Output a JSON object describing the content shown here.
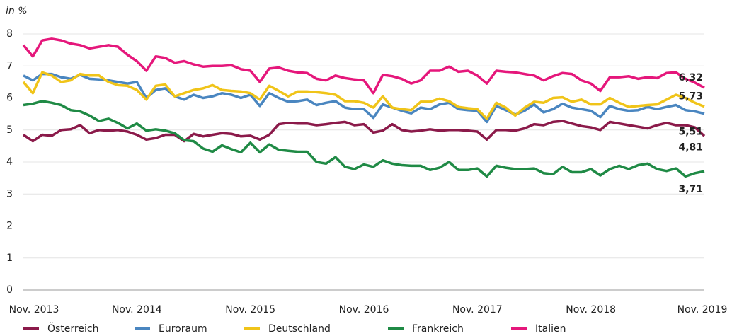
{
  "chart_data": {
    "type": "line",
    "y_label": "in %",
    "categories": [
      "Nov. 2013",
      null,
      null,
      null,
      null,
      null,
      null,
      null,
      null,
      null,
      null,
      null,
      "Nov. 2014",
      null,
      null,
      null,
      null,
      null,
      null,
      null,
      null,
      null,
      null,
      null,
      "Nov. 2015",
      null,
      null,
      null,
      null,
      null,
      null,
      null,
      null,
      null,
      null,
      null,
      "Nov. 2016",
      null,
      null,
      null,
      null,
      null,
      null,
      null,
      null,
      null,
      null,
      null,
      "Nov. 2017",
      null,
      null,
      null,
      null,
      null,
      null,
      null,
      null,
      null,
      null,
      null,
      "Nov. 2018",
      null,
      null,
      null,
      null,
      null,
      null,
      null,
      null,
      null,
      null,
      null,
      "Nov. 2019"
    ],
    "ylim": [
      0,
      8
    ],
    "yticks": [
      0,
      1,
      2,
      3,
      4,
      5,
      6,
      7,
      8
    ],
    "grid": true,
    "series": [
      {
        "name": "Österreich",
        "color": "#8b1a4a",
        "values": [
          4.85,
          4.65,
          4.85,
          4.82,
          5.0,
          5.02,
          5.15,
          4.9,
          5.0,
          4.98,
          5.0,
          4.95,
          4.85,
          4.7,
          4.75,
          4.85,
          4.85,
          4.65,
          4.88,
          4.8,
          4.85,
          4.9,
          4.88,
          4.8,
          4.82,
          4.7,
          4.85,
          5.18,
          5.22,
          5.2,
          5.2,
          5.15,
          5.18,
          5.22,
          5.25,
          5.15,
          5.18,
          4.92,
          4.98,
          5.18,
          5.0,
          4.95,
          4.98,
          5.02,
          4.98,
          5.0,
          5.0,
          4.98,
          4.95,
          4.7,
          5.0,
          5.0,
          4.98,
          5.05,
          5.18,
          5.15,
          5.25,
          5.28,
          5.2,
          5.12,
          5.08,
          5.0,
          5.25,
          5.2,
          5.15,
          5.1,
          5.05,
          5.15,
          5.22,
          5.15,
          5.15,
          5.08,
          4.81
        ],
        "value_labels": {
          "72": "4,81"
        }
      },
      {
        "name": "Euroraum",
        "color": "#4a86c0",
        "values": [
          6.7,
          6.55,
          6.75,
          6.75,
          6.65,
          6.6,
          6.72,
          6.6,
          6.58,
          6.55,
          6.5,
          6.45,
          6.5,
          6.0,
          6.25,
          6.3,
          6.05,
          5.95,
          6.1,
          6.0,
          6.05,
          6.15,
          6.1,
          6.0,
          6.1,
          5.75,
          6.15,
          6.0,
          5.88,
          5.9,
          5.95,
          5.78,
          5.85,
          5.9,
          5.7,
          5.65,
          5.65,
          5.38,
          5.8,
          5.7,
          5.6,
          5.52,
          5.7,
          5.65,
          5.8,
          5.85,
          5.65,
          5.62,
          5.6,
          5.25,
          5.75,
          5.62,
          5.48,
          5.6,
          5.8,
          5.55,
          5.65,
          5.82,
          5.7,
          5.65,
          5.6,
          5.4,
          5.75,
          5.65,
          5.6,
          5.62,
          5.72,
          5.65,
          5.72,
          5.78,
          5.62,
          5.58,
          5.51
        ],
        "value_labels": {
          "72": "5,51"
        }
      },
      {
        "name": "Deutschland",
        "color": "#f0c419",
        "values": [
          6.5,
          6.15,
          6.8,
          6.7,
          6.5,
          6.55,
          6.75,
          6.7,
          6.7,
          6.5,
          6.4,
          6.38,
          6.25,
          5.95,
          6.38,
          6.42,
          6.05,
          6.15,
          6.25,
          6.3,
          6.4,
          6.25,
          6.22,
          6.2,
          6.15,
          5.95,
          6.38,
          6.22,
          6.05,
          6.2,
          6.2,
          6.18,
          6.15,
          6.1,
          5.9,
          5.9,
          5.85,
          5.7,
          6.05,
          5.7,
          5.65,
          5.62,
          5.88,
          5.88,
          5.98,
          5.9,
          5.72,
          5.68,
          5.65,
          5.35,
          5.85,
          5.7,
          5.45,
          5.7,
          5.88,
          5.85,
          6.0,
          6.02,
          5.88,
          5.95,
          5.8,
          5.8,
          6.0,
          5.85,
          5.72,
          5.75,
          5.78,
          5.8,
          5.95,
          6.1,
          6.0,
          5.85,
          5.73
        ],
        "value_labels": {
          "72": "5,73"
        }
      },
      {
        "name": "Frankreich",
        "color": "#1f8a45",
        "values": [
          5.78,
          5.82,
          5.9,
          5.85,
          5.78,
          5.62,
          5.58,
          5.45,
          5.28,
          5.35,
          5.22,
          5.05,
          5.2,
          4.98,
          5.02,
          4.98,
          4.9,
          4.68,
          4.65,
          4.42,
          4.32,
          4.52,
          4.4,
          4.3,
          4.6,
          4.3,
          4.55,
          4.38,
          4.35,
          4.32,
          4.32,
          4.0,
          3.95,
          4.15,
          3.85,
          3.78,
          3.92,
          3.85,
          4.05,
          3.95,
          3.9,
          3.88,
          3.88,
          3.75,
          3.82,
          4.0,
          3.75,
          3.75,
          3.8,
          3.55,
          3.88,
          3.82,
          3.78,
          3.78,
          3.8,
          3.65,
          3.62,
          3.85,
          3.68,
          3.68,
          3.78,
          3.58,
          3.78,
          3.88,
          3.78,
          3.9,
          3.95,
          3.78,
          3.72,
          3.8,
          3.55,
          3.65,
          3.71
        ],
        "value_labels": {
          "72": "3,71"
        }
      },
      {
        "name": "Italien",
        "color": "#e5177b",
        "values": [
          7.65,
          7.3,
          7.8,
          7.85,
          7.8,
          7.7,
          7.65,
          7.55,
          7.6,
          7.65,
          7.6,
          7.35,
          7.15,
          6.85,
          7.3,
          7.25,
          7.1,
          7.15,
          7.05,
          6.98,
          7.0,
          7.0,
          7.02,
          6.9,
          6.85,
          6.5,
          6.92,
          6.95,
          6.85,
          6.8,
          6.78,
          6.6,
          6.55,
          6.7,
          6.62,
          6.58,
          6.55,
          6.15,
          6.72,
          6.68,
          6.6,
          6.45,
          6.55,
          6.85,
          6.85,
          6.98,
          6.82,
          6.85,
          6.7,
          6.45,
          6.85,
          6.82,
          6.8,
          6.75,
          6.7,
          6.55,
          6.68,
          6.78,
          6.75,
          6.55,
          6.45,
          6.22,
          6.65,
          6.65,
          6.68,
          6.6,
          6.65,
          6.62,
          6.78,
          6.8,
          6.6,
          6.48,
          6.32
        ],
        "value_labels": {
          "72": "6,32"
        }
      }
    ]
  }
}
